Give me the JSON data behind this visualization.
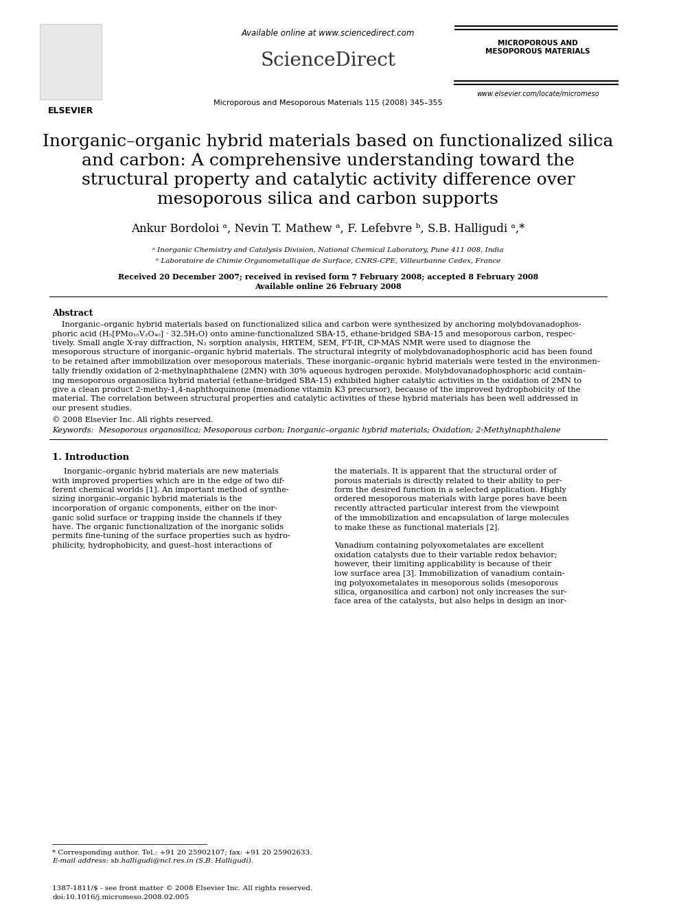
{
  "header_available_online": "Available online at www.sciencedirect.com",
  "header_journal": "Microporous and Mesoporous Materials 115 (2008) 345–355",
  "header_journal_name": "MICROPOROUS AND\nMESOPOROUS MATERIALS",
  "header_website": "www.elsevier.com/locate/micromeso",
  "title_line1": "Inorganic–organic hybrid materials based on functionalized silica",
  "title_line2": "and carbon: A comprehensive understanding toward the",
  "title_line3": "structural property and catalytic activity difference over",
  "title_line4": "mesoporous silica and carbon supports",
  "authors": "Ankur Bordoloi ᵃ, Nevin T. Mathew ᵃ, F. Lefebvre ᵇ, S.B. Halligudi ᵃ,*",
  "affil_a": "ᵃ Inorganic Chemistry and Catalysis Division, National Chemical Laboratory, Pune 411 008, India",
  "affil_b": "ᵇ Laboratoire de Chimie Organometallique de Surface, CNRS-CPE, Villeurbanne Cedex, France",
  "received": "Received 20 December 2007; received in revised form 7 February 2008; accepted 8 February 2008",
  "available_online": "Available online 26 February 2008",
  "abstract_title": "Abstract",
  "abstract_body": "Inorganic–organic hybrid materials based on functionalized silica and carbon were synthesized by anchoring molybdovanadophos-\nphoric acid (H₅[PMo₁₀V₂O₄₀] · 32.5H₂O) onto amine-functionalized SBA-15, ethane-bridged SBA-15 and mesoporous carbon, respec-\ntively. Small angle X-ray diffraction, N₂ sorption analysis, HRTEM, SEM, FT-IR, CP-MAS NMR were used to diagnose the\nmesoporous structure of inorganic–organic hybrid materials. The structural integrity of molybdovanadophosphoric acid has been found\nto be retained after immobilization over mesoporous materials. These inorganic–organic hybrid materials were tested in the environmen-\ntally friendly oxidation of 2-methylnaphthalene (2MN) with 30% aqueous hydrogen peroxide. Molybdovanadophosphoric acid contain-\ning mesoporous organosilica hybrid material (ethane-bridged SBA-15) exhibited higher catalytic activities in the oxidation of 2MN to\ngive a clean product 2-methy-1,4-naphthoquinone (menadione vitamin K3 precursor), because of the improved hydrophobicity of the\nmaterial. The correlation between structural properties and catalytic activities of these hybrid materials has been well addressed in\nour present studies.",
  "copyright": "© 2008 Elsevier Inc. All rights reserved.",
  "keywords": "Keywords:  Mesoporous organosilica; Mesoporous carbon; Inorganic–organic hybrid materials; Oxidation; 2-Methylnaphthalene",
  "section1_title": "1. Introduction",
  "section1_col1": "Inorganic–organic hybrid materials are new materials\nwith improved properties which are in the edge of two dif-\nferent chemical worlds [1]. An important method of synthe-\nsizing inorganic–organic hybrid materials is the\nincorporation of organic components, either on the inor-\nganic solid surface or trapping inside the channels if they\nhave. The organic functionalization of the inorganic solids\npermits fine-tuning of the surface properties such as hydro-\nphilicity, hydrophobicity, and guest–host interactions of",
  "section1_col2": "the materials. It is apparent that the structural order of\nporous materials is directly related to their ability to per-\nform the desired function in a selected application. Highly\nordered mesoporous materials with large pores have been\nrecently attracted particular interest from the viewpoint\nof the immobilization and encapsulation of large molecules\nto make these as functional materials [2].\n\nVanadium containing polyoxometalates are excellent\noxidation catalysts due to their variable redox behavior;\nhowever, their limiting applicability is because of their\nlow surface area [3]. Immobilization of vanadium contain-\ning polyoxometalates in mesoporous solids (mesoporous\nsilica, organosilica and carbon) not only increases the sur-\nface area of the catalysts, but also helps in design an inor-",
  "footnote_star": "* Corresponding author. Tel.: +91 20 25902107; fax: +91 20 25902633.",
  "footnote_email": "E-mail address: sb.halligudi@ncl.res.in (S.B. Halligudi).",
  "footer_issn": "1387-1811/$ - see front matter © 2008 Elsevier Inc. All rights reserved.",
  "footer_doi": "doi:10.1016/j.micromeso.2008.02.005",
  "bg_color": "#ffffff",
  "text_color": "#000000"
}
